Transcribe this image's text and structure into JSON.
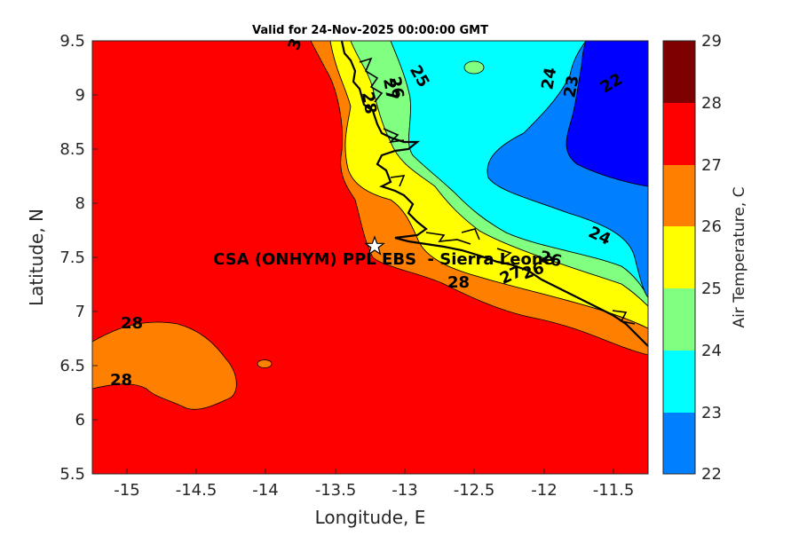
{
  "title": "Valid for 24-Nov-2025 00:00:00 GMT",
  "axes": {
    "xlabel": "Longitude, E",
    "ylabel": "Latitude, N",
    "xticks": [
      "-15",
      "-14.5",
      "-14",
      "-13.5",
      "-13",
      "-12.5",
      "-12",
      "-11.5"
    ],
    "yticks": [
      "9.5",
      "9",
      "8.5",
      "8",
      "7.5",
      "7",
      "6.5",
      "6",
      "5.5"
    ]
  },
  "colorbar": {
    "label": "Air Temperature, C",
    "ticks": [
      "29",
      "28",
      "27",
      "26",
      "25",
      "24",
      "23",
      "22"
    ],
    "colors": [
      "#7f0000",
      "#ff0000",
      "#ff8000",
      "#ffff00",
      "#80ff80",
      "#00ffff",
      "#0080ff",
      "#0000ff"
    ]
  },
  "site": {
    "label": "CSA (ONHYM) PPL EBS  - Sierra Leone",
    "marker": "star-icon"
  },
  "contour_labels": [
    "28",
    "28",
    "28",
    "28",
    "27",
    "27",
    "26",
    "26",
    "26",
    "25",
    "25",
    "24",
    "24",
    "23",
    "22",
    "3"
  ],
  "chart_data": {
    "type": "heatmap",
    "title": "Valid for 24-Nov-2025 00:00:00 GMT",
    "xlabel": "Longitude, E",
    "ylabel": "Latitude, N",
    "xlim": [
      -15.25,
      -11.25
    ],
    "ylim": [
      5.5,
      9.5
    ],
    "clim": [
      22,
      29
    ],
    "colorbar_label": "Air Temperature, C",
    "site": {
      "name": "CSA (ONHYM) PPL EBS  - Sierra Leone",
      "lon": -13.23,
      "lat": 7.6
    }
  }
}
